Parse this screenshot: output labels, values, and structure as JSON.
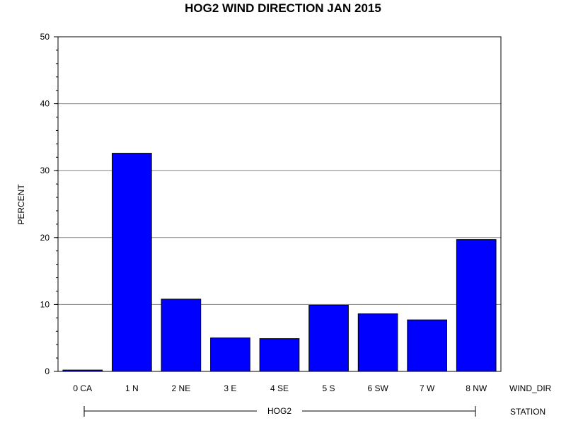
{
  "chart_data": {
    "type": "bar",
    "title": "HOG2 WIND DIRECTION JAN 2015",
    "ylabel": "PERCENT",
    "xlabel": "WIND_DIR",
    "group_axis_label": "STATION",
    "group_label": "HOG2",
    "categories": [
      "0 CA",
      "1 N",
      "2 NE",
      "3 E",
      "4 SE",
      "5 S",
      "6 SW",
      "7 W",
      "8 NW"
    ],
    "values": [
      0.2,
      32.6,
      10.8,
      5.0,
      4.9,
      9.9,
      8.6,
      7.7,
      19.7
    ],
    "ylim": [
      0,
      50
    ],
    "yticks": [
      0,
      10,
      20,
      30,
      40,
      50
    ],
    "grid": true,
    "bar_color": "#0000ff"
  }
}
